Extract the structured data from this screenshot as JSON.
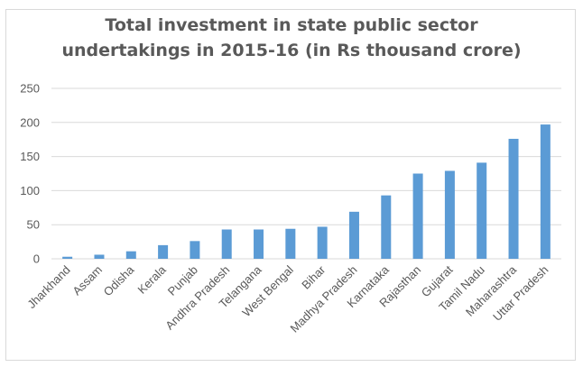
{
  "chart_data": {
    "type": "bar",
    "title_lines": [
      "Total investment in state public sector",
      "undertakings in 2015-16  (in Rs thousand crore)"
    ],
    "categories": [
      "Jharkhand",
      "Assam",
      "Odisha",
      "Kerala",
      "Punjab",
      "Andhra Pradesh",
      "Telangana",
      "West Bengal",
      "Bihar",
      "Madhya Pradesh",
      "Karnataka",
      "Rajasthan",
      "Gujarat",
      "Tamil Nadu",
      "Maharashtra",
      "Uttar Pradesh"
    ],
    "values": [
      3,
      6,
      11,
      20,
      26,
      43,
      43,
      44,
      47,
      69,
      93,
      125,
      129,
      141,
      176,
      197
    ],
    "yticks": [
      0,
      50,
      100,
      150,
      200,
      250
    ],
    "ylim": [
      0,
      250
    ],
    "grid": true,
    "bar_color": "#5b9bd5"
  }
}
